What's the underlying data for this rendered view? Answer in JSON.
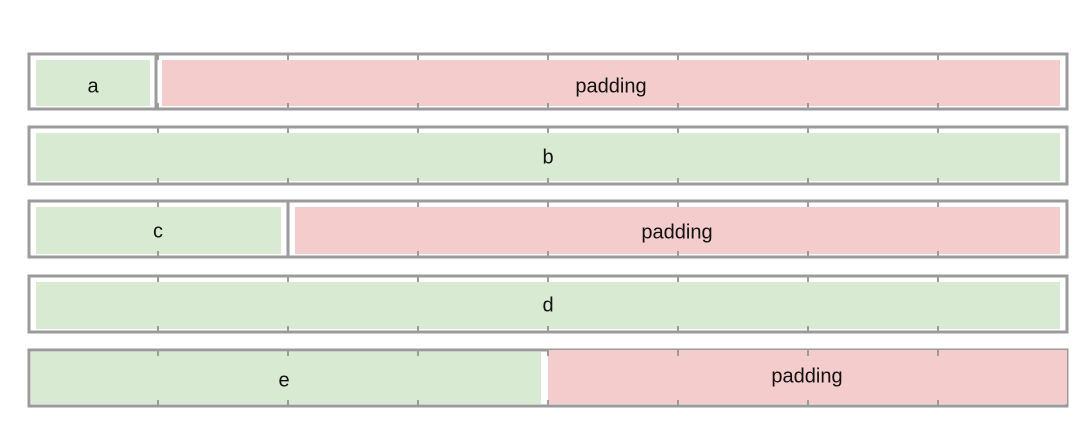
{
  "rows": [
    {
      "cells": [
        "a",
        "padding"
      ]
    },
    {
      "cells": [
        "b"
      ]
    },
    {
      "cells": [
        "c",
        "padding"
      ]
    },
    {
      "cells": [
        "d"
      ]
    },
    {
      "cells": [
        "e",
        "padding"
      ]
    }
  ]
}
